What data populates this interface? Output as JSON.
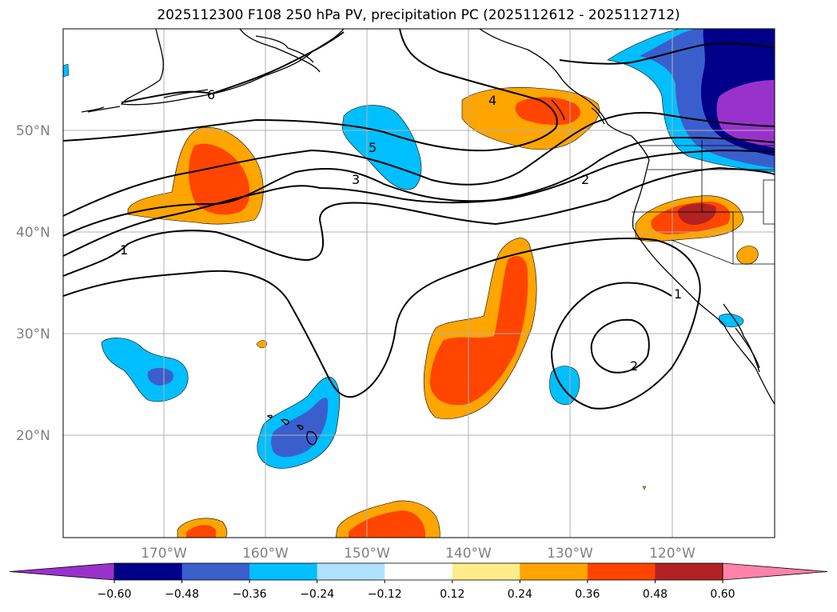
{
  "title": "2025112300 F108 250 hPa PV, precipitation PC (2025112612 - 2025112712)",
  "map": {
    "lat_labels": [
      "50°N",
      "40°N",
      "30°N",
      "20°N"
    ],
    "lon_labels": [
      "170°W",
      "160°W",
      "150°W",
      "140°W",
      "130°W",
      "120°W"
    ],
    "contour_labels": [
      "6",
      "5",
      "4",
      "3",
      "2",
      "1",
      "1",
      "2"
    ]
  },
  "colorbar": {
    "ticks": [
      "−0.60",
      "−0.48",
      "−0.36",
      "−0.24",
      "−0.12",
      "0.12",
      "0.24",
      "0.36",
      "0.48",
      "0.60"
    ],
    "colors": [
      "#9932CC",
      "#00008B",
      "#3A5FCD",
      "#00BFFF",
      "#B0E2FF",
      "#FFFFFF",
      "#FFEC8B",
      "#FFA500",
      "#FF4500",
      "#B22222",
      "#FF82AB"
    ]
  }
}
